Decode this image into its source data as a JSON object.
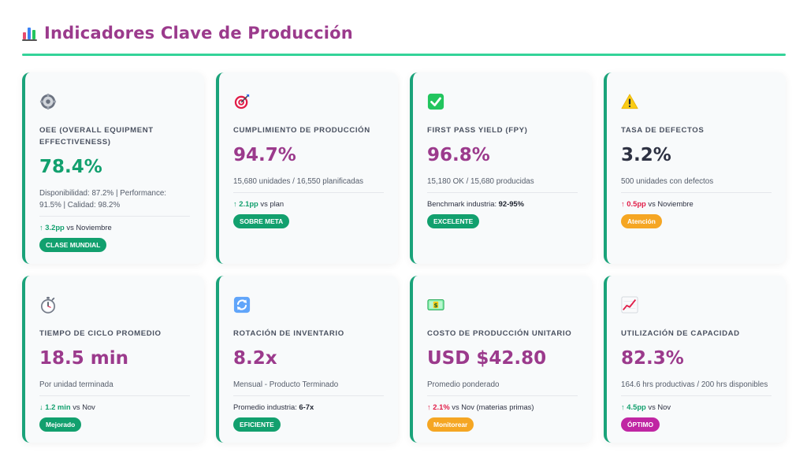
{
  "header": {
    "title": "Indicadores Clave de Producción",
    "icon": "bar-chart-icon"
  },
  "colors": {
    "accent": "#9b3a8c",
    "green": "#1aa37a",
    "rule": "#34d399",
    "orange": "#f5a623",
    "magenta": "#c026a3"
  },
  "cards": [
    {
      "icon": "gear-icon",
      "label": "OEE (OVERALL EQUIPMENT EFFECTIVENESS)",
      "value": "78.4%",
      "value_color": "#12a06e",
      "desc": "Disponibilidad: 87.2% | Performance: 91.5% | Calidad: 98.2%",
      "delta_arrow": "↑",
      "delta_value": "3.2pp",
      "delta_text": "vs Noviembre",
      "badge": "CLASE MUNDIAL",
      "badge_color": "#12a06e"
    },
    {
      "icon": "target-icon",
      "label": "CUMPLIMIENTO DE PRODUCCIÓN",
      "value": "94.7%",
      "value_color": "#9b3a8c",
      "desc": "15,680 unidades / 16,550 planificadas",
      "delta_arrow": "↑",
      "delta_value": "2.1pp",
      "delta_text": "vs plan",
      "badge": "SOBRE META",
      "badge_color": "#12a06e"
    },
    {
      "icon": "check-mark-icon",
      "label": "FIRST PASS YIELD (FPY)",
      "value": "96.8%",
      "value_color": "#9b3a8c",
      "desc": "15,180 OK / 15,680 producidas",
      "ref_text": "Benchmark industria:",
      "ref_value": "92-95%",
      "badge": "EXCELENTE",
      "badge_color": "#12a06e"
    },
    {
      "icon": "warning-icon",
      "label": "TASA DE DEFECTOS",
      "value": "3.2%",
      "value_color": "#2d3142",
      "desc": "500 unidades con defectos",
      "delta_arrow": "↑",
      "delta_value": "0.5pp",
      "delta_text": "vs Noviembre",
      "badge": "Atención",
      "badge_color": "#f5a623"
    },
    {
      "icon": "stopwatch-icon",
      "label": "TIEMPO DE CICLO PROMEDIO",
      "value": "18.5 min",
      "value_color": "#9b3a8c",
      "desc": "Por unidad terminada",
      "delta_arrow": "↓",
      "delta_value": "1.2 min",
      "delta_text": "vs Nov",
      "badge": "Mejorado",
      "badge_color": "#12a06e"
    },
    {
      "icon": "refresh-icon",
      "label": "ROTACIÓN DE INVENTARIO",
      "value": "8.2x",
      "value_color": "#9b3a8c",
      "desc": "Mensual - Producto Terminado",
      "ref_text": "Promedio industria:",
      "ref_value": "6-7x",
      "badge": "EFICIENTE",
      "badge_color": "#12a06e"
    },
    {
      "icon": "money-icon",
      "label": "COSTO DE PRODUCCIÓN UNITARIO",
      "value": "USD $42.80",
      "value_color": "#9b3a8c",
      "desc": "Promedio ponderado",
      "delta_arrow": "↑",
      "delta_value": "2.1%",
      "delta_text": "vs Nov (materias primas)",
      "badge": "Monitorear",
      "badge_color": "#f5a623"
    },
    {
      "icon": "trend-up-icon",
      "label": "UTILIZACIÓN DE CAPACIDAD",
      "value": "82.3%",
      "value_color": "#9b3a8c",
      "desc": "164.6 hrs productivas / 200 hrs disponibles",
      "delta_arrow": "↑",
      "delta_value": "4.5pp",
      "delta_text": "vs Nov",
      "badge": "ÓPTIMO",
      "badge_color": "#c026a3"
    }
  ]
}
